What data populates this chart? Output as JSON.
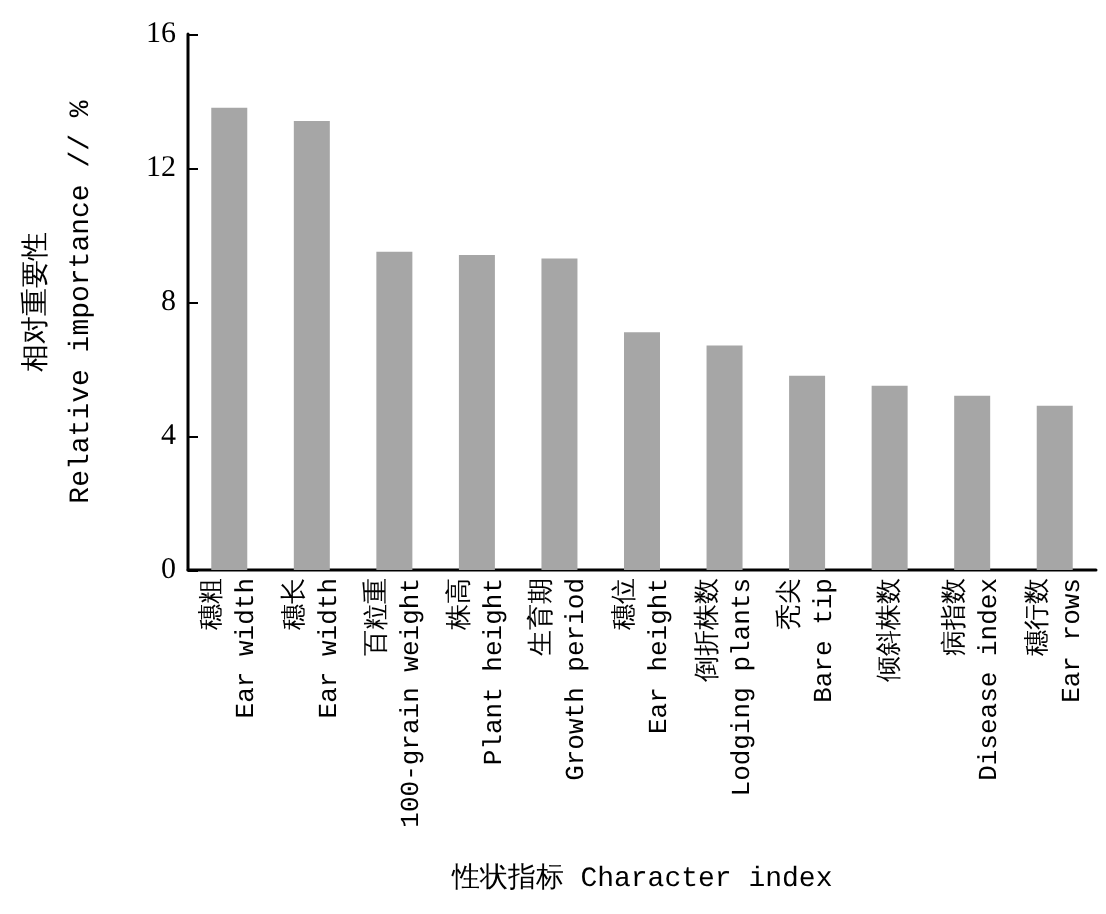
{
  "chart_data": {
    "type": "bar",
    "xlabel": "性状指标 Character index",
    "ylabel": "相对重要性\nRelative importance // %",
    "categories": [
      "穗粗\nEar width",
      "穗长\nEar width",
      "百粒重\n100-grain weight",
      "株高\nPlant height",
      "生育期\nGrowth period",
      "穗位\nEar height",
      "倒折株数\nLodging plants",
      "秃尖\nBare tip",
      "倾斜株数",
      "病指数\nDisease index",
      "穗行数\nEar rows"
    ],
    "values": [
      13.8,
      13.4,
      9.5,
      9.4,
      9.3,
      7.1,
      6.7,
      5.8,
      5.5,
      5.2,
      4.9
    ],
    "color": "#a6a6a6",
    "ylim": [
      0,
      16
    ],
    "yticks": [
      0,
      4,
      8,
      12,
      16
    ]
  }
}
